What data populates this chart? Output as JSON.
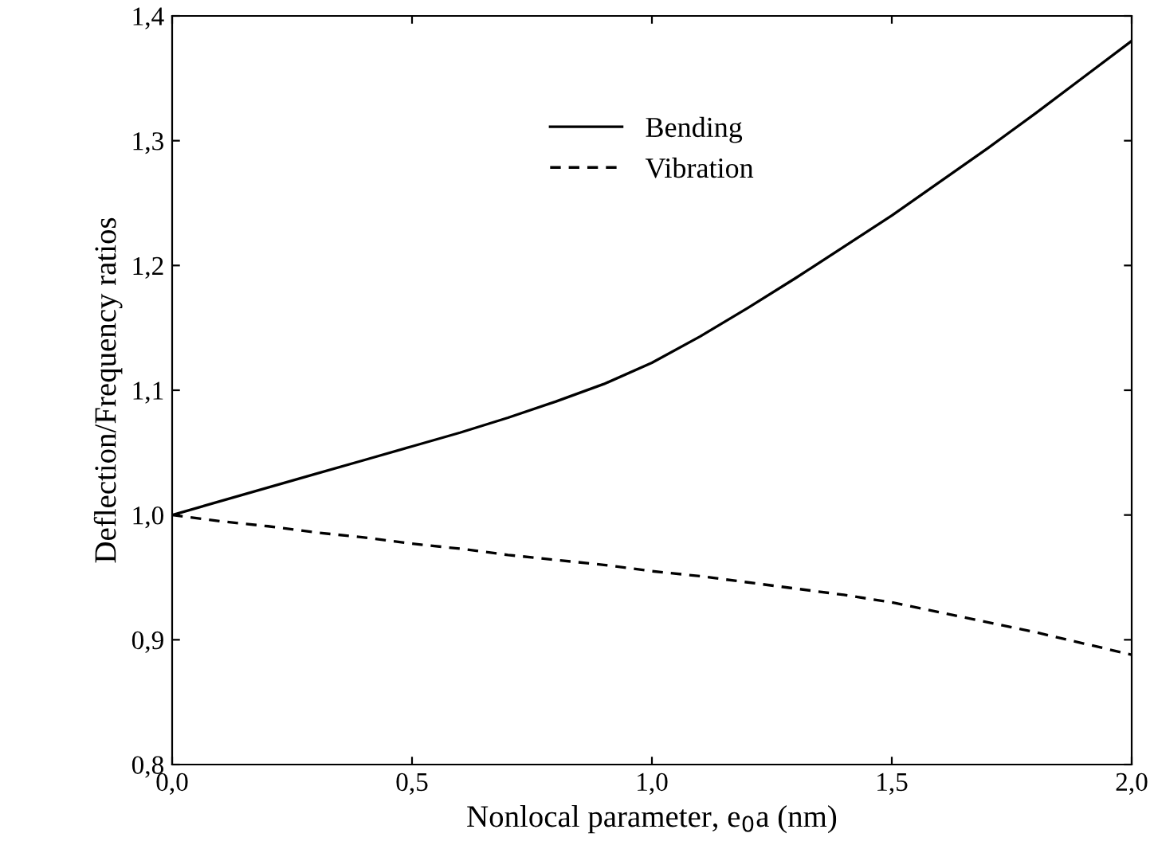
{
  "chart_data": {
    "type": "line",
    "xlabel": "Nonlocal parameter, e$_{0}$a (nm)",
    "ylabel": "Deflection/Frequency ratios",
    "x": [
      0,
      0.1,
      0.2,
      0.3,
      0.4,
      0.5,
      0.6,
      0.7,
      0.8,
      0.9,
      1.0,
      1.1,
      1.2,
      1.3,
      1.4,
      1.5,
      1.6,
      1.7,
      1.8,
      1.9,
      2.0
    ],
    "series": [
      {
        "name": "Bending",
        "color": "#000000",
        "line_style": "solid",
        "values": [
          1.0,
          1.011,
          1.022,
          1.033,
          1.044,
          1.055,
          1.066,
          1.078,
          1.091,
          1.105,
          1.122,
          1.143,
          1.166,
          1.19,
          1.215,
          1.24,
          1.267,
          1.294,
          1.322,
          1.351,
          1.38
        ]
      },
      {
        "name": "Vibration",
        "color": "#000000",
        "line_style": "dashed",
        "values": [
          1.0,
          0.995,
          0.991,
          0.986,
          0.982,
          0.977,
          0.973,
          0.968,
          0.964,
          0.96,
          0.955,
          0.951,
          0.946,
          0.941,
          0.936,
          0.93,
          0.922,
          0.914,
          0.906,
          0.897,
          0.888
        ]
      }
    ],
    "xlim": [
      0,
      2.0
    ],
    "ylim": [
      0.8,
      1.4
    ],
    "xticks": [
      {
        "value": 0,
        "label": "0,0"
      },
      {
        "value": 0.5,
        "label": "0,5"
      },
      {
        "value": 1.0,
        "label": "1,0"
      },
      {
        "value": 1.5,
        "label": "1,5"
      },
      {
        "value": 2.0,
        "label": "2,0"
      }
    ],
    "yticks": [
      {
        "value": 0.8,
        "label": "0,8"
      },
      {
        "value": 0.9,
        "label": "0,9"
      },
      {
        "value": 1.0,
        "label": "1,0"
      },
      {
        "value": 1.1,
        "label": "1,1"
      },
      {
        "value": 1.2,
        "label": "1,2"
      },
      {
        "value": 1.3,
        "label": "1,3"
      },
      {
        "value": 1.4,
        "label": "1,4"
      }
    ],
    "grid": false,
    "legend": "top",
    "marker": "none"
  }
}
